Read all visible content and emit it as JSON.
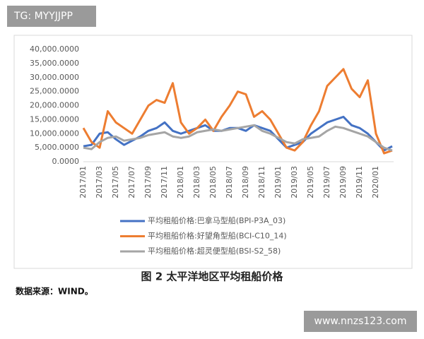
{
  "chart_data": {
    "type": "line",
    "title": "图 2 太平洋地区平均租船价格",
    "categories": [
      "2017/01",
      null,
      "2017/03",
      null,
      "2017/05",
      null,
      "2017/07",
      null,
      "2017/09",
      null,
      "2017/11",
      null,
      "2018/01",
      null,
      "2018/03",
      null,
      "2018/05",
      null,
      "2018/07",
      null,
      "2018/09",
      null,
      "2018/11",
      null,
      "2019/01",
      null,
      "2019/03",
      null,
      "2019/05",
      null,
      "2019/07",
      null,
      "2019/09",
      null,
      "2019/11",
      null,
      "2020/01",
      null,
      null
    ],
    "series": [
      {
        "name": "平均租船价格:巴拿马型船(BPI-P3A_03)",
        "color": "#4472c4",
        "values": [
          5500,
          6000,
          10000,
          10500,
          8000,
          6000,
          7500,
          9000,
          11000,
          12000,
          14000,
          11000,
          10000,
          11000,
          12000,
          13000,
          11000,
          11000,
          12000,
          12000,
          11000,
          13000,
          12000,
          11000,
          8000,
          5000,
          6000,
          7000,
          10000,
          12000,
          14000,
          15000,
          16000,
          13000,
          12000,
          10000,
          7000,
          4000,
          5500
        ]
      },
      {
        "name": "平均租船价格:好望角型船(BCI-C10_14)",
        "color": "#ed7d31",
        "values": [
          12000,
          7000,
          5000,
          18000,
          14000,
          12000,
          10000,
          15000,
          20000,
          22000,
          21000,
          28000,
          14000,
          10000,
          12000,
          15000,
          11000,
          16000,
          20000,
          25000,
          24000,
          16000,
          18000,
          15000,
          10000,
          5000,
          4000,
          7000,
          13000,
          18000,
          27000,
          30000,
          33000,
          26000,
          23000,
          29000,
          10000,
          3000,
          4000
        ]
      },
      {
        "name": "平均租船价格:超灵便型船(BSI-S2_58)",
        "color": "#a5a5a5",
        "values": [
          5000,
          4500,
          7000,
          8500,
          9000,
          7500,
          8000,
          8500,
          9500,
          10000,
          10500,
          9000,
          8500,
          9000,
          10500,
          11000,
          11500,
          11000,
          11500,
          12000,
          12500,
          13000,
          11000,
          10000,
          8500,
          7000,
          6500,
          8000,
          8500,
          9000,
          11000,
          12500,
          12000,
          11000,
          10000,
          9000,
          7000,
          5000,
          4000
        ]
      }
    ],
    "ylim": [
      0,
      40000
    ],
    "yticks": [
      {
        "value": 0,
        "label": "0.0000"
      },
      {
        "value": 5000,
        "label": "5,000.0000"
      },
      {
        "value": 10000,
        "label": "10,000.0000"
      },
      {
        "value": 15000,
        "label": "15,000.0000"
      },
      {
        "value": 20000,
        "label": "20,000.0000"
      },
      {
        "value": 25000,
        "label": "25,000.0000"
      },
      {
        "value": 30000,
        "label": "30,000.0000"
      },
      {
        "value": 35000,
        "label": "35,000.0000"
      },
      {
        "value": 40000,
        "label": "40,000.0000"
      }
    ],
    "grid": false
  },
  "source": "数据来源：WIND。",
  "watermarks": [
    "TG: MYYJJPP",
    "www.nnzs123.com"
  ]
}
